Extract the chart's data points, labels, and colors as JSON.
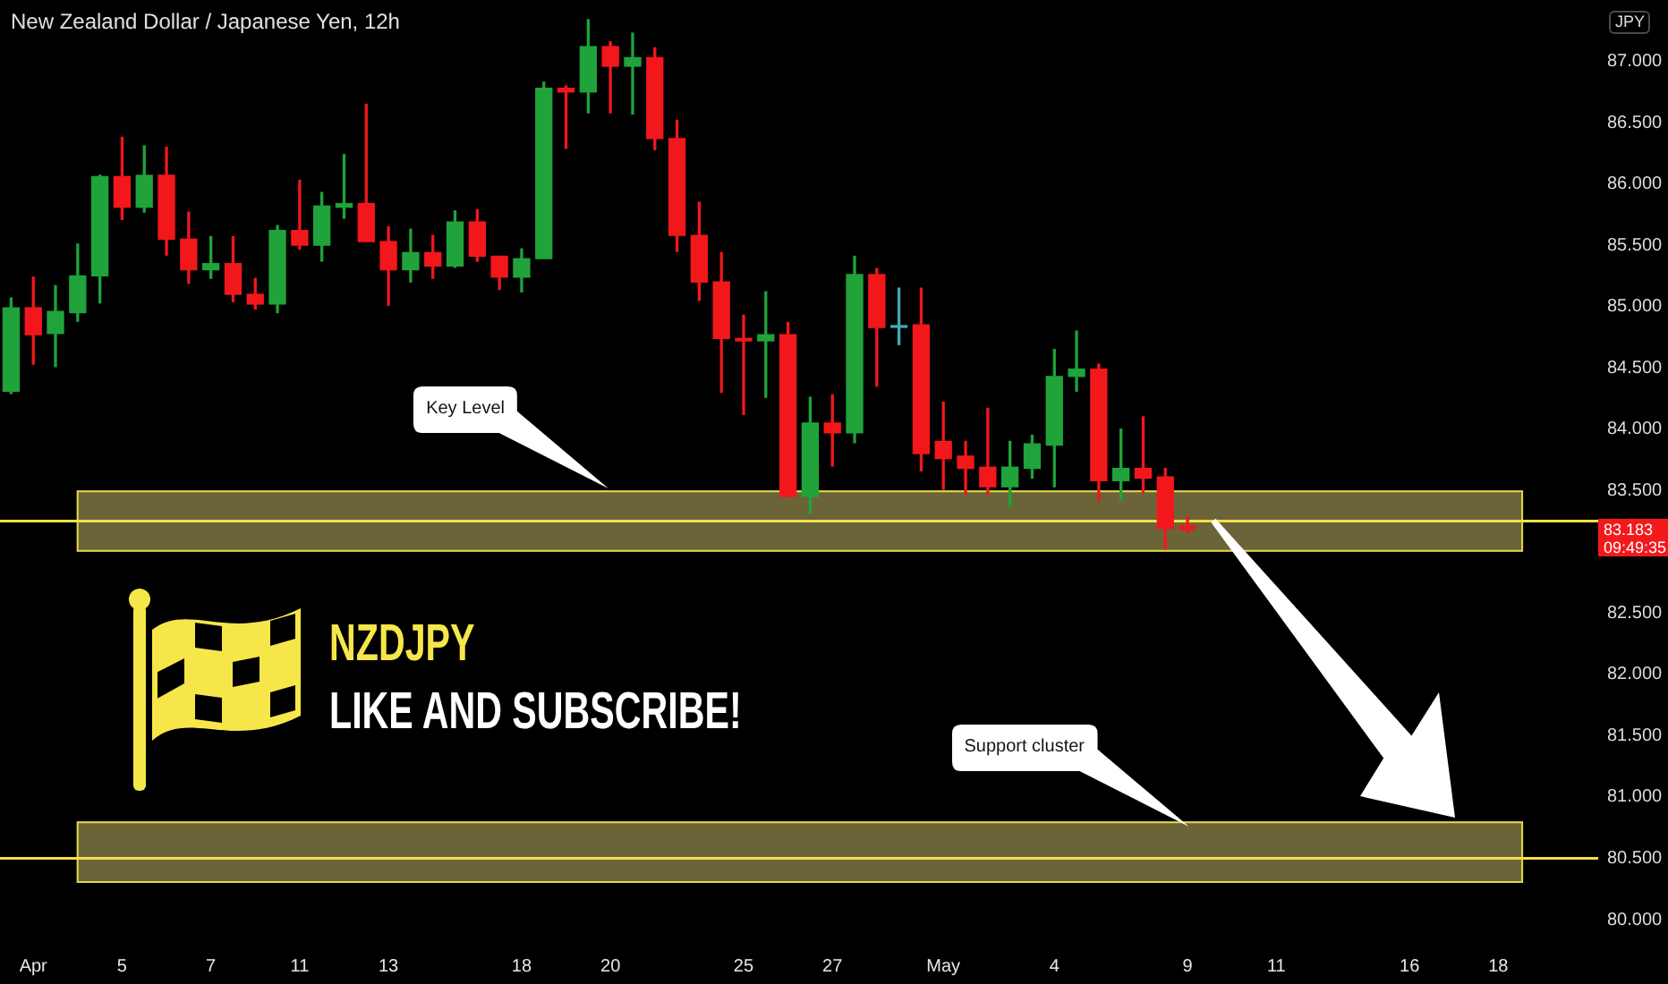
{
  "chart_data": {
    "type": "candlestick",
    "title": "New Zealand Dollar / Japanese Yen, 12h",
    "ylabel": "JPY",
    "categories": [
      null,
      "Apr",
      null,
      null,
      null,
      "5",
      null,
      null,
      null,
      "7",
      null,
      null,
      null,
      "11",
      null,
      null,
      null,
      "13",
      null,
      null,
      null,
      null,
      null,
      "18",
      null,
      null,
      null,
      "20",
      null,
      null,
      null,
      null,
      null,
      "25",
      null,
      null,
      null,
      "27",
      null,
      null,
      null,
      null,
      "May",
      null,
      null,
      null,
      null,
      "4",
      null,
      null,
      null,
      null,
      null,
      "9",
      null,
      null,
      null,
      "11",
      null,
      null,
      null,
      null,
      null,
      "16",
      null,
      null,
      null,
      "18",
      null,
      null,
      null,
      null
    ],
    "ohlc": [
      [
        84.31,
        85.07,
        84.29,
        84.99
      ],
      [
        84.99,
        85.24,
        84.53,
        84.77
      ],
      [
        84.78,
        85.17,
        84.51,
        84.96
      ],
      [
        84.95,
        85.51,
        84.88,
        85.25
      ],
      [
        85.25,
        86.07,
        85.03,
        86.06
      ],
      [
        86.06,
        86.38,
        85.71,
        85.81
      ],
      [
        85.81,
        86.31,
        85.77,
        86.07
      ],
      [
        86.07,
        86.3,
        85.42,
        85.55
      ],
      [
        85.55,
        85.77,
        85.19,
        85.3
      ],
      [
        85.3,
        85.57,
        85.23,
        85.35
      ],
      [
        85.35,
        85.57,
        85.04,
        85.1
      ],
      [
        85.1,
        85.23,
        84.98,
        85.02
      ],
      [
        85.02,
        85.66,
        84.95,
        85.62
      ],
      [
        85.62,
        86.03,
        85.47,
        85.5
      ],
      [
        85.5,
        85.93,
        85.37,
        85.82
      ],
      [
        85.81,
        86.24,
        85.72,
        85.84
      ],
      [
        85.84,
        86.65,
        85.53,
        85.53
      ],
      [
        85.53,
        85.65,
        85.01,
        85.3
      ],
      [
        85.3,
        85.63,
        85.2,
        85.44
      ],
      [
        85.44,
        85.58,
        85.23,
        85.33
      ],
      [
        85.33,
        85.78,
        85.32,
        85.69
      ],
      [
        85.69,
        85.79,
        85.37,
        85.41
      ],
      [
        85.41,
        85.41,
        85.14,
        85.24
      ],
      [
        85.24,
        85.47,
        85.12,
        85.39
      ],
      [
        85.39,
        86.83,
        85.39,
        86.78
      ],
      [
        86.78,
        86.8,
        86.29,
        86.75
      ],
      [
        86.75,
        87.34,
        86.58,
        87.12
      ],
      [
        87.12,
        87.16,
        86.58,
        86.96
      ],
      [
        86.96,
        87.23,
        86.57,
        87.03
      ],
      [
        87.03,
        87.11,
        86.28,
        86.37
      ],
      [
        86.37,
        86.52,
        85.45,
        85.58
      ],
      [
        85.58,
        85.85,
        85.05,
        85.2
      ],
      [
        85.2,
        85.44,
        84.3,
        84.74
      ],
      [
        84.74,
        84.93,
        84.12,
        84.72
      ],
      [
        84.72,
        85.12,
        84.26,
        84.77
      ],
      [
        84.77,
        84.87,
        83.45,
        83.45
      ],
      [
        83.45,
        84.26,
        83.31,
        84.05
      ],
      [
        84.05,
        84.28,
        83.7,
        83.97
      ],
      [
        83.97,
        85.41,
        83.89,
        85.26
      ],
      [
        85.26,
        85.31,
        84.35,
        84.83
      ],
      [
        84.83,
        85.15,
        84.69,
        84.84
      ],
      [
        84.85,
        85.15,
        83.66,
        83.8
      ],
      [
        83.9,
        84.22,
        83.51,
        83.76
      ],
      [
        83.78,
        83.9,
        83.47,
        83.68
      ],
      [
        83.69,
        84.17,
        83.47,
        83.53
      ],
      [
        83.53,
        83.9,
        83.37,
        83.69
      ],
      [
        83.68,
        83.95,
        83.6,
        83.88
      ],
      [
        83.87,
        84.65,
        83.53,
        84.43
      ],
      [
        84.43,
        84.8,
        84.31,
        84.49
      ],
      [
        84.49,
        84.53,
        83.41,
        83.58
      ],
      [
        83.58,
        84.0,
        83.42,
        83.68
      ],
      [
        83.68,
        84.1,
        83.48,
        83.6
      ],
      [
        83.61,
        83.68,
        83.02,
        83.19
      ],
      [
        83.21,
        83.29,
        83.15,
        83.183
      ],
      null,
      null,
      null,
      null,
      null,
      null,
      null,
      null,
      null,
      null,
      null,
      null,
      null,
      null,
      null,
      null,
      null,
      null
    ],
    "colors": [
      "#1fa33a",
      "#f2171b",
      "#1fa33a",
      "#1fa33a",
      "#1fa33a",
      "#f2171b",
      "#1fa33a",
      "#f2171b",
      "#f2171b",
      "#1fa33a",
      "#f2171b",
      "#f2171b",
      "#1fa33a",
      "#f2171b",
      "#1fa33a",
      "#1fa33a",
      "#f2171b",
      "#f2171b",
      "#1fa33a",
      "#f2171b",
      "#1fa33a",
      "#f2171b",
      "#f2171b",
      "#1fa33a",
      "#1fa33a",
      "#f2171b",
      "#1fa33a",
      "#f2171b",
      "#1fa33a",
      "#f2171b",
      "#f2171b",
      "#f2171b",
      "#f2171b",
      "#f2171b",
      "#1fa33a",
      "#f2171b",
      "#1fa33a",
      "#f2171b",
      "#1fa33a",
      "#f2171b",
      "#42a9b3",
      "#f2171b",
      "#f2171b",
      "#f2171b",
      "#f2171b",
      "#1fa33a",
      "#1fa33a",
      "#1fa33a",
      "#1fa33a",
      "#f2171b",
      "#1fa33a",
      "#f2171b",
      "#f2171b",
      "#f2171b",
      null,
      null,
      null,
      null,
      null,
      null,
      null,
      null,
      null,
      null,
      null,
      null,
      null,
      null,
      null,
      null,
      null,
      null
    ],
    "ylim": [
      80,
      87.5
    ],
    "yticks": [
      {
        "value": 80,
        "label": "80.000"
      },
      {
        "value": 80.5,
        "label": "80.500"
      },
      {
        "value": 81,
        "label": "81.000"
      },
      {
        "value": 81.5,
        "label": "81.500"
      },
      {
        "value": 82,
        "label": "82.000"
      },
      {
        "value": 82.5,
        "label": "82.500"
      },
      {
        "value": 83.5,
        "label": "83.500"
      },
      {
        "value": 84,
        "label": "84.000"
      },
      {
        "value": 84.5,
        "label": "84.500"
      },
      {
        "value": 85,
        "label": "85.000"
      },
      {
        "value": 85.5,
        "label": "85.500"
      },
      {
        "value": 86,
        "label": "86.000"
      },
      {
        "value": 86.5,
        "label": "86.500"
      },
      {
        "value": 87,
        "label": "87.000"
      }
    ],
    "bands": [
      {
        "axis": "y",
        "from": 83,
        "to": 83.5,
        "color": "#6b6438"
      },
      {
        "axis": "y",
        "from": 80.3,
        "to": 80.8,
        "color": "#6b6438"
      }
    ],
    "ref_lines": [
      {
        "axis": "y",
        "value": 83.25,
        "color": "#f0e04a"
      },
      {
        "axis": "y",
        "value": 80.5,
        "color": "#f0e04a"
      }
    ],
    "annotations": [
      "Key Level",
      "Support cluster",
      "NZDJPY",
      "LIKE AND SUBSCRIBE!",
      "83.183",
      "09:49:35"
    ]
  }
}
